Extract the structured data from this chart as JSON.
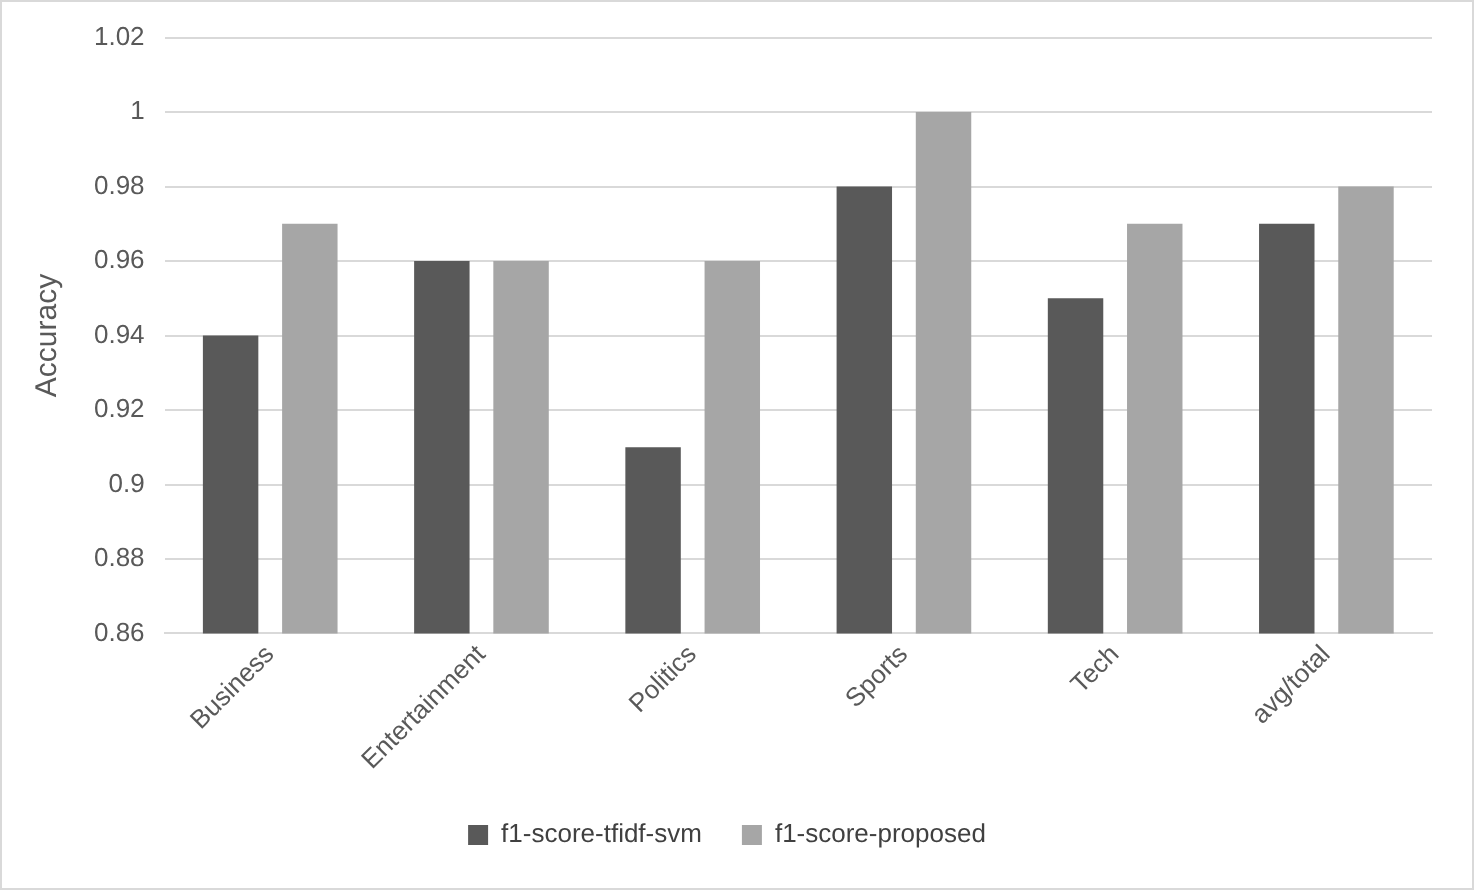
{
  "chart_data": {
    "type": "bar",
    "ylabel": "Accuracy",
    "categories": [
      "Business",
      "Entertainment",
      "Politics",
      "Sports",
      "Tech",
      "avg/total"
    ],
    "series": [
      {
        "name": "f1-score-tfidf-svm",
        "color": "#595959",
        "values": [
          0.94,
          0.96,
          0.91,
          0.98,
          0.95,
          0.97
        ]
      },
      {
        "name": "f1-score-proposed",
        "color": "#a6a6a6",
        "values": [
          0.97,
          0.96,
          0.96,
          1.0,
          0.97,
          0.98
        ]
      }
    ],
    "ylim": [
      0.86,
      1.02
    ],
    "yticks": [
      0.86,
      0.88,
      0.9,
      0.92,
      0.94,
      0.96,
      0.98,
      1,
      1.02
    ],
    "grid": "y",
    "legend": "bottom"
  }
}
